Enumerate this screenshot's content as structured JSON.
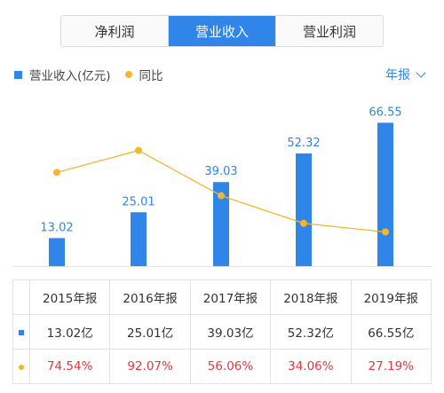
{
  "tabs": [
    {
      "label": "净利润",
      "active": false
    },
    {
      "label": "营业收入",
      "active": true
    },
    {
      "label": "营业利润",
      "active": false
    }
  ],
  "legend": {
    "revenue_label": "营业收入(亿元)",
    "yoy_label": "同比"
  },
  "period_select": {
    "value": "年报"
  },
  "colors": {
    "bar": "#2f86e8",
    "line": "#f5b52e",
    "negative_text": "#e0383e"
  },
  "chart_data": {
    "type": "bar",
    "categories": [
      "2015年报",
      "2016年报",
      "2017年报",
      "2018年报",
      "2019年报"
    ],
    "series": [
      {
        "name": "营业收入(亿元)",
        "type": "bar",
        "values": [
          13.02,
          25.01,
          39.03,
          52.32,
          66.55
        ]
      },
      {
        "name": "同比",
        "type": "line",
        "values": [
          74.54,
          92.07,
          56.06,
          34.06,
          27.19
        ]
      }
    ],
    "data_labels": [
      "13.02",
      "25.01",
      "39.03",
      "52.32",
      "66.55"
    ],
    "ylim": [
      0,
      70
    ],
    "y2lim": [
      0,
      120
    ],
    "grid": false
  },
  "table": {
    "headers": [
      "2015年报",
      "2016年报",
      "2017年报",
      "2018年报",
      "2019年报"
    ],
    "revenue": [
      "13.02亿",
      "25.01亿",
      "39.03亿",
      "52.32亿",
      "66.55亿"
    ],
    "yoy": [
      "74.54%",
      "92.07%",
      "56.06%",
      "34.06%",
      "27.19%"
    ]
  }
}
